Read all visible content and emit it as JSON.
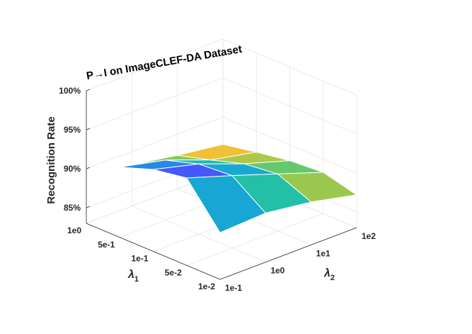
{
  "chart_data": {
    "type": "surface",
    "title": "P→I on ImageCLEF-DA Dataset",
    "zlabel": "Recognition Rate",
    "xlabel": "λ",
    "xlabel_sub": "1",
    "ylabel": "λ",
    "ylabel_sub": "2",
    "x_ticks": [
      "1e0",
      "5e-1",
      "1e-1",
      "5e-2",
      "1e-2"
    ],
    "y_ticks": [
      "1e-1",
      "1e0",
      "1e1",
      "1e2"
    ],
    "z_ticks": [
      "85%",
      "90%",
      "95%",
      "100%"
    ],
    "zlim": [
      83,
      100
    ],
    "grid": true,
    "colormap": "parula",
    "z": [
      [
        89.6,
        92.0,
        93.5,
        94.2,
        89.0
      ],
      [
        88.3,
        90.7,
        92.0,
        92.3,
        89.3
      ],
      [
        87.3,
        88.5,
        89.8,
        90.3,
        88.5
      ],
      [
        86.5,
        87.3,
        88.0,
        88.3,
        87.2
      ]
    ]
  }
}
